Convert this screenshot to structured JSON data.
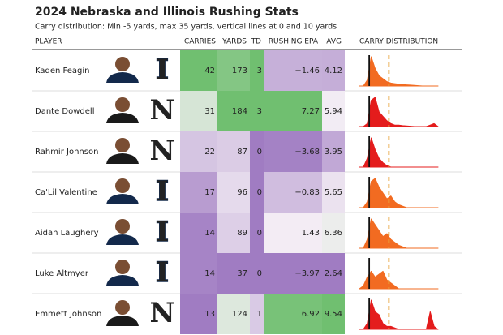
{
  "header": {
    "title": "2024 Nebraska and Illinois Rushing Stats",
    "subtitle": "Carry distribution: Min -5 yards, max 35 yards, vertical lines at 0 and 10 yards"
  },
  "columns": [
    "PLAYER",
    "CARRIES",
    "YARDS",
    "TD",
    "RUSHING EPA",
    "AVG",
    "CARRY DISTRIBUTION"
  ],
  "distribution": {
    "xlim": [
      -5,
      35
    ],
    "lines": [
      0,
      10
    ],
    "x": [
      -5,
      -3,
      -1,
      1,
      3,
      5,
      7,
      9,
      11,
      13,
      15,
      17,
      19,
      21,
      23,
      25,
      27,
      29,
      31,
      33,
      35
    ]
  },
  "rows": [
    {
      "player": "Kaden Feagin",
      "logo": "I",
      "color": "#f26b21",
      "carries": "42",
      "yards": "173",
      "td": "3",
      "epa": "−1.46",
      "avg": "4.12",
      "density": [
        0,
        0,
        0.2,
        1,
        0.6,
        0.35,
        0.25,
        0.15,
        0.1,
        0.08,
        0.06,
        0.05,
        0.04,
        0.03,
        0.02,
        0.01,
        0,
        0,
        0,
        0,
        0
      ]
    },
    {
      "player": "Dante Dowdell",
      "logo": "N",
      "color": "#e41c1c",
      "carries": "31",
      "yards": "184",
      "td": "3",
      "epa": "7.27",
      "avg": "5.94",
      "density": [
        0,
        0,
        0.1,
        0.9,
        1,
        0.5,
        0.35,
        0.2,
        0.1,
        0.05,
        0.05,
        0.03,
        0.02,
        0.01,
        0,
        0,
        0,
        0,
        0.05,
        0.1,
        0
      ]
    },
    {
      "player": "Rahmir Johnson",
      "logo": "N",
      "color": "#e41c1c",
      "carries": "22",
      "yards": "87",
      "td": "0",
      "epa": "−3.68",
      "avg": "3.95",
      "density": [
        0,
        0,
        0.3,
        1,
        0.6,
        0.3,
        0.15,
        0.05,
        0,
        0,
        0,
        0,
        0,
        0,
        0,
        0,
        0,
        0,
        0,
        0,
        0
      ]
    },
    {
      "player": "Ca'Lil Valentine",
      "logo": "I",
      "color": "#f26b21",
      "carries": "17",
      "yards": "96",
      "td": "0",
      "epa": "−0.83",
      "avg": "5.65",
      "density": [
        0,
        0,
        0.2,
        0.9,
        1,
        0.7,
        0.5,
        0.3,
        0.4,
        0.2,
        0.1,
        0.05,
        0,
        0,
        0,
        0,
        0,
        0,
        0,
        0,
        0
      ]
    },
    {
      "player": "Aidan Laughery",
      "logo": "I",
      "color": "#f26b21",
      "carries": "14",
      "yards": "89",
      "td": "0",
      "epa": "1.43",
      "avg": "6.36",
      "density": [
        0,
        0,
        0.3,
        1,
        0.8,
        0.6,
        0.4,
        0.5,
        0.3,
        0.2,
        0.1,
        0.05,
        0,
        0,
        0,
        0,
        0,
        0,
        0,
        0,
        0
      ]
    },
    {
      "player": "Luke Altmyer",
      "logo": "I",
      "color": "#f26b21",
      "carries": "14",
      "yards": "37",
      "td": "0",
      "epa": "−3.97",
      "avg": "2.64",
      "density": [
        0,
        0.1,
        0.4,
        0.6,
        0.4,
        0.5,
        0.6,
        0.3,
        0.2,
        0.1,
        0,
        0,
        0,
        0,
        0,
        0,
        0,
        0,
        0,
        0,
        0
      ]
    },
    {
      "player": "Emmett Johnson",
      "logo": "N",
      "color": "#e41c1c",
      "carries": "13",
      "yards": "124",
      "td": "1",
      "epa": "6.92",
      "avg": "9.54",
      "density": [
        0,
        0,
        0.2,
        1,
        0.6,
        0.5,
        0.2,
        0.1,
        0.1,
        0.05,
        0,
        0,
        0,
        0,
        0,
        0,
        0,
        0,
        0.6,
        0.1,
        0
      ]
    }
  ]
}
